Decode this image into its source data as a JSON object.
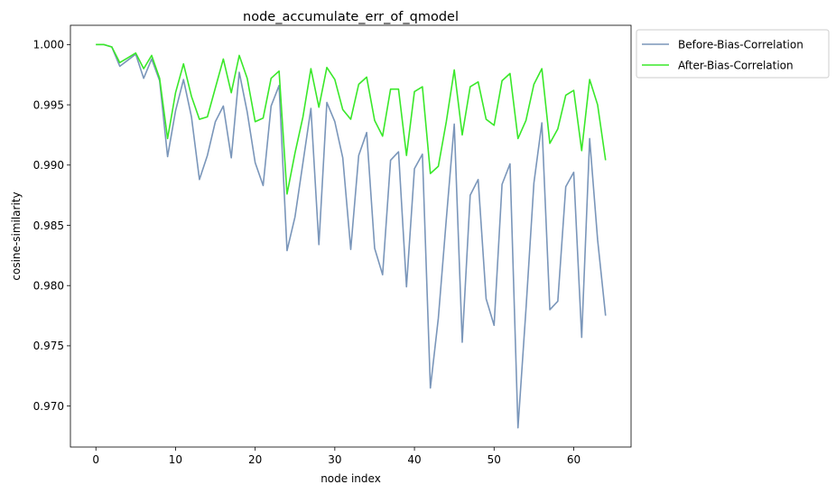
{
  "chart_data": {
    "type": "line",
    "title": "node_accumulate_err_of_qmodel",
    "xlabel": "node index",
    "ylabel": "cosine-similarity",
    "xlim": [
      -3.2,
      67.2
    ],
    "ylim": [
      0.9666,
      1.0016
    ],
    "xticks": [
      0,
      10,
      20,
      30,
      40,
      50,
      60
    ],
    "yticks": [
      0.97,
      0.975,
      0.98,
      0.985,
      0.99,
      0.995,
      1.0
    ],
    "ytick_labels": [
      "0.970",
      "0.975",
      "0.980",
      "0.985",
      "0.990",
      "0.995",
      "1.000"
    ],
    "grid": false,
    "legend_placement": "outside-top-right",
    "series": [
      {
        "name": "Before-Bias-Correlation",
        "color": "#7a96ba",
        "x": [
          0,
          1,
          2,
          3,
          4,
          5,
          6,
          7,
          8,
          9,
          10,
          11,
          12,
          13,
          14,
          15,
          16,
          17,
          18,
          19,
          20,
          21,
          22,
          23,
          24,
          25,
          26,
          27,
          28,
          29,
          30,
          31,
          32,
          33,
          34,
          35,
          36,
          37,
          38,
          39,
          40,
          41,
          42,
          43,
          44,
          45,
          46,
          47,
          48,
          49,
          50,
          51,
          52,
          53,
          54,
          55,
          56,
          57,
          58,
          59,
          60,
          61,
          62,
          63,
          64
        ],
        "values": [
          1.0,
          1.0,
          0.9998,
          0.9982,
          0.9987,
          0.9992,
          0.9972,
          0.9988,
          0.997,
          0.9907,
          0.9945,
          0.9971,
          0.994,
          0.9888,
          0.9908,
          0.9936,
          0.9949,
          0.9906,
          0.9977,
          0.9944,
          0.9902,
          0.9883,
          0.9949,
          0.9966,
          0.9829,
          0.9857,
          0.9902,
          0.9947,
          0.9834,
          0.9952,
          0.9936,
          0.9906,
          0.983,
          0.9908,
          0.9927,
          0.9831,
          0.9809,
          0.9904,
          0.9911,
          0.9799,
          0.9897,
          0.9909,
          0.9715,
          0.9773,
          0.9855,
          0.9934,
          0.9753,
          0.9875,
          0.9888,
          0.9789,
          0.9767,
          0.9884,
          0.9901,
          0.9682,
          0.978,
          0.9885,
          0.9935,
          0.978,
          0.9787,
          0.9882,
          0.9894,
          0.9757,
          0.9922,
          0.9838,
          0.9775
        ]
      },
      {
        "name": "After-Bias-Correlation",
        "color": "#3ae82a",
        "x": [
          0,
          1,
          2,
          3,
          4,
          5,
          6,
          7,
          8,
          9,
          10,
          11,
          12,
          13,
          14,
          15,
          16,
          17,
          18,
          19,
          20,
          21,
          22,
          23,
          24,
          25,
          26,
          27,
          28,
          29,
          30,
          31,
          32,
          33,
          34,
          35,
          36,
          37,
          38,
          39,
          40,
          41,
          42,
          43,
          44,
          45,
          46,
          47,
          48,
          49,
          50,
          51,
          52,
          53,
          54,
          55,
          56,
          57,
          58,
          59,
          60,
          61,
          62,
          63,
          64
        ],
        "values": [
          1.0,
          1.0,
          0.9998,
          0.9985,
          0.9989,
          0.9993,
          0.998,
          0.9991,
          0.9972,
          0.9922,
          0.996,
          0.9984,
          0.9957,
          0.9938,
          0.994,
          0.9964,
          0.9988,
          0.996,
          0.9991,
          0.9972,
          0.9936,
          0.9939,
          0.9972,
          0.9978,
          0.9876,
          0.991,
          0.994,
          0.998,
          0.9948,
          0.9981,
          0.9971,
          0.9946,
          0.9938,
          0.9967,
          0.9973,
          0.9937,
          0.9924,
          0.9963,
          0.9963,
          0.9908,
          0.9961,
          0.9965,
          0.9893,
          0.9899,
          0.9936,
          0.9979,
          0.9925,
          0.9965,
          0.9969,
          0.9938,
          0.9933,
          0.997,
          0.9976,
          0.9922,
          0.9937,
          0.9967,
          0.998,
          0.9918,
          0.993,
          0.9958,
          0.9962,
          0.9912,
          0.9971,
          0.995,
          0.9904
        ]
      }
    ]
  }
}
